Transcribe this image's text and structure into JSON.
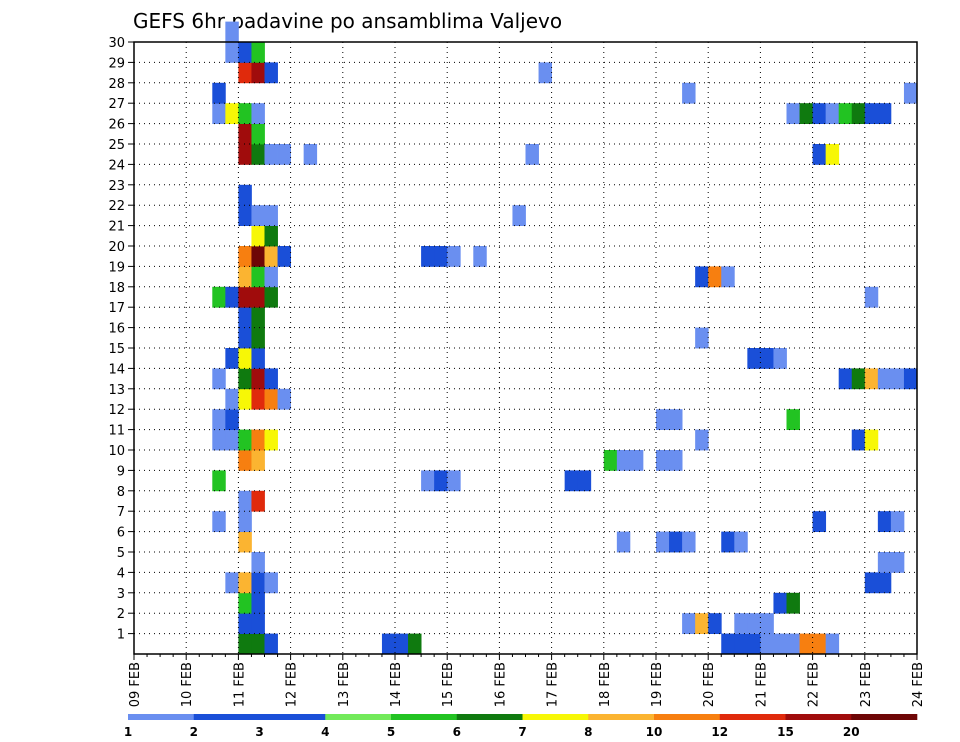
{
  "chart_data": {
    "type": "heatmap",
    "title": "GEFS 6hr padavine po ansamblima Valjevo",
    "xlabel": "",
    "ylabel": "",
    "x_tick_labels": [
      "09 FEB",
      "10 FEB",
      "11 FEB",
      "12 FEB",
      "13 FEB",
      "14 FEB",
      "15 FEB",
      "16 FEB",
      "17 FEB",
      "18 FEB",
      "19 FEB",
      "20 FEB",
      "21 FEB",
      "22 FEB",
      "23 FEB",
      "24 FEB"
    ],
    "y_tick_labels": [
      "1",
      "2",
      "3",
      "4",
      "5",
      "6",
      "7",
      "8",
      "9",
      "10",
      "11",
      "12",
      "13",
      "14",
      "15",
      "16",
      "17",
      "18",
      "19",
      "20",
      "21",
      "22",
      "23",
      "24",
      "25",
      "26",
      "27",
      "28",
      "29",
      "30"
    ],
    "xlim": [
      0,
      60
    ],
    "ylim": [
      0,
      30
    ],
    "grid": true,
    "colorbar": {
      "levels": [
        "1",
        "2",
        "3",
        "4",
        "5",
        "6",
        "7",
        "8",
        "10",
        "12",
        "15",
        "20"
      ],
      "colors": [
        "#b3c4f5",
        "#6a8ff0",
        "#1a4fd8",
        "#1a4fd8",
        "#72ea5a",
        "#22c322",
        "#0f7a0f",
        "#f7f706",
        "#fbb431",
        "#f77f10",
        "#e02a0c",
        "#a00c0c",
        "#6e0606"
      ]
    },
    "cells": [
      [
        8,
        0,
        6
      ],
      [
        9,
        0,
        6
      ],
      [
        10,
        0,
        3
      ],
      [
        19,
        0,
        3
      ],
      [
        20,
        0,
        3
      ],
      [
        21,
        0,
        6
      ],
      [
        45,
        0,
        3
      ],
      [
        46,
        0,
        3
      ],
      [
        47,
        0,
        3
      ],
      [
        48,
        0,
        1
      ],
      [
        49,
        0,
        1
      ],
      [
        50,
        0,
        1
      ],
      [
        51,
        0,
        9
      ],
      [
        52,
        0,
        9
      ],
      [
        53,
        0,
        1
      ],
      [
        8,
        1,
        2
      ],
      [
        9,
        1,
        3
      ],
      [
        42,
        1,
        1
      ],
      [
        43,
        1,
        8
      ],
      [
        44,
        1,
        3
      ],
      [
        46,
        1,
        1
      ],
      [
        47,
        1,
        1
      ],
      [
        48,
        1,
        1
      ],
      [
        8,
        2,
        5
      ],
      [
        9,
        2,
        3
      ],
      [
        49,
        2,
        2
      ],
      [
        50,
        2,
        6
      ],
      [
        7,
        3,
        1
      ],
      [
        8,
        3,
        8
      ],
      [
        9,
        3,
        3
      ],
      [
        10,
        3,
        1
      ],
      [
        56,
        3,
        2
      ],
      [
        57,
        3,
        3
      ],
      [
        9,
        4,
        1
      ],
      [
        57,
        4,
        1
      ],
      [
        58,
        4,
        1
      ],
      [
        8,
        5,
        8
      ],
      [
        37,
        5,
        1
      ],
      [
        40,
        5,
        1
      ],
      [
        41,
        5,
        2
      ],
      [
        42,
        5,
        1
      ],
      [
        45,
        5,
        2
      ],
      [
        46,
        5,
        1
      ],
      [
        6,
        6,
        1
      ],
      [
        8,
        6,
        1
      ],
      [
        52,
        6,
        2
      ],
      [
        57,
        6,
        3
      ],
      [
        58,
        6,
        1
      ],
      [
        8,
        7,
        1
      ],
      [
        9,
        7,
        10
      ],
      [
        6,
        8,
        5
      ],
      [
        22,
        8,
        1
      ],
      [
        23,
        8,
        2
      ],
      [
        24,
        8,
        1
      ],
      [
        33,
        8,
        3
      ],
      [
        34,
        8,
        2
      ],
      [
        8,
        9,
        9
      ],
      [
        9,
        9,
        8
      ],
      [
        36,
        9,
        5
      ],
      [
        37,
        9,
        1
      ],
      [
        38,
        9,
        1
      ],
      [
        40,
        9,
        1
      ],
      [
        41,
        9,
        1
      ],
      [
        6,
        10,
        1
      ],
      [
        7,
        10,
        1
      ],
      [
        8,
        10,
        5
      ],
      [
        9,
        10,
        9
      ],
      [
        10,
        10,
        7
      ],
      [
        43,
        10,
        1
      ],
      [
        55,
        10,
        2
      ],
      [
        56,
        10,
        7
      ],
      [
        6,
        11,
        1
      ],
      [
        7,
        11,
        3
      ],
      [
        40,
        11,
        1
      ],
      [
        41,
        11,
        1
      ],
      [
        50,
        11,
        5
      ],
      [
        7,
        12,
        1
      ],
      [
        8,
        12,
        7
      ],
      [
        9,
        12,
        10
      ],
      [
        10,
        12,
        9
      ],
      [
        11,
        12,
        1
      ],
      [
        6,
        13,
        1
      ],
      [
        8,
        13,
        6
      ],
      [
        9,
        13,
        11
      ],
      [
        10,
        13,
        2
      ],
      [
        54,
        13,
        3
      ],
      [
        55,
        13,
        6
      ],
      [
        56,
        13,
        8
      ],
      [
        57,
        13,
        1
      ],
      [
        58,
        13,
        1
      ],
      [
        59,
        13,
        2
      ],
      [
        7,
        14,
        2
      ],
      [
        8,
        14,
        7
      ],
      [
        9,
        14,
        3
      ],
      [
        47,
        14,
        2
      ],
      [
        48,
        14,
        2
      ],
      [
        49,
        14,
        1
      ],
      [
        8,
        15,
        3
      ],
      [
        9,
        15,
        6
      ],
      [
        43,
        15,
        1
      ],
      [
        8,
        16,
        3
      ],
      [
        9,
        16,
        6
      ],
      [
        6,
        17,
        5
      ],
      [
        7,
        17,
        3
      ],
      [
        8,
        17,
        11
      ],
      [
        9,
        17,
        11
      ],
      [
        10,
        17,
        6
      ],
      [
        56,
        17,
        1
      ],
      [
        8,
        18,
        8
      ],
      [
        9,
        18,
        5
      ],
      [
        10,
        18,
        1
      ],
      [
        43,
        18,
        3
      ],
      [
        44,
        18,
        9
      ],
      [
        45,
        18,
        1
      ],
      [
        8,
        19,
        9
      ],
      [
        9,
        19,
        12
      ],
      [
        10,
        19,
        8
      ],
      [
        11,
        19,
        3
      ],
      [
        22,
        19,
        2
      ],
      [
        23,
        19,
        2
      ],
      [
        24,
        19,
        1
      ],
      [
        26,
        19,
        1
      ],
      [
        9,
        20,
        7
      ],
      [
        10,
        20,
        6
      ],
      [
        8,
        21,
        3
      ],
      [
        9,
        21,
        1
      ],
      [
        10,
        21,
        1
      ],
      [
        29,
        21,
        1
      ],
      [
        8,
        22,
        2
      ],
      [
        8,
        24,
        11
      ],
      [
        9,
        24,
        6
      ],
      [
        10,
        24,
        1
      ],
      [
        11,
        24,
        1
      ],
      [
        13,
        24,
        1
      ],
      [
        30,
        24,
        1
      ],
      [
        52,
        24,
        3
      ],
      [
        53,
        24,
        7
      ],
      [
        8,
        25,
        11
      ],
      [
        9,
        25,
        5
      ],
      [
        6,
        26,
        1
      ],
      [
        7,
        26,
        7
      ],
      [
        8,
        26,
        5
      ],
      [
        9,
        26,
        1
      ],
      [
        50,
        26,
        1
      ],
      [
        51,
        26,
        6
      ],
      [
        52,
        26,
        2
      ],
      [
        53,
        26,
        1
      ],
      [
        54,
        26,
        5
      ],
      [
        55,
        26,
        6
      ],
      [
        56,
        26,
        2
      ],
      [
        57,
        26,
        3
      ],
      [
        6,
        27,
        3
      ],
      [
        42,
        27,
        1
      ],
      [
        59,
        27,
        1
      ],
      [
        8,
        28,
        10
      ],
      [
        9,
        28,
        11
      ],
      [
        10,
        28,
        2
      ],
      [
        31,
        28,
        1
      ],
      [
        7,
        29,
        1
      ],
      [
        8,
        29,
        3
      ],
      [
        9,
        29,
        5
      ],
      [
        7,
        30,
        1
      ]
    ]
  }
}
